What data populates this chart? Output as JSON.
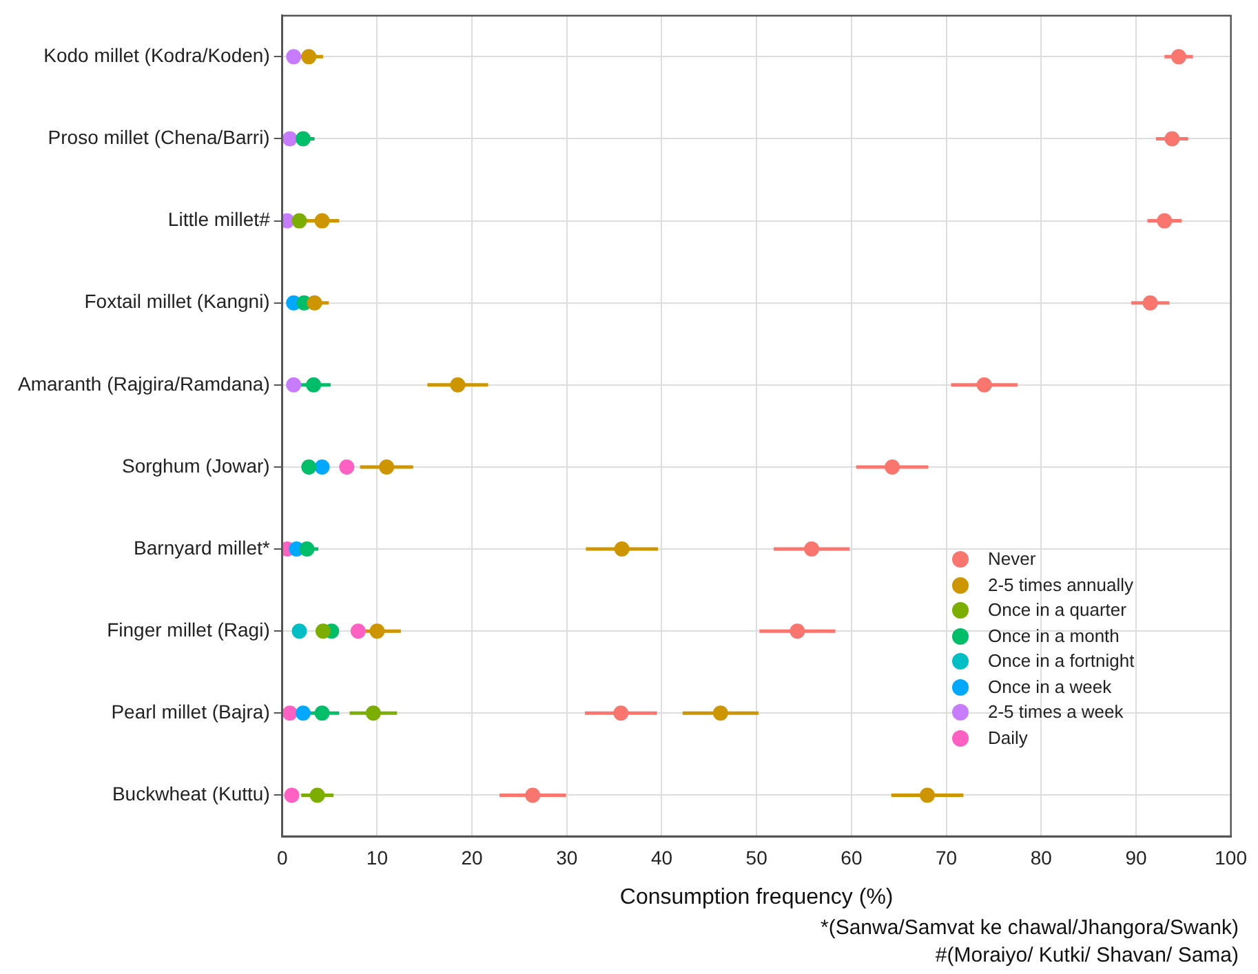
{
  "chart_data": {
    "type": "scatter",
    "orientation": "horizontal",
    "xlabel": "Consumption frequency (%)",
    "categories": [
      "Kodo millet (Kodra/Koden)",
      "Proso millet (Chena/Barri)",
      "Little millet#",
      "Foxtail millet (Kangni)",
      "Amaranth (Rajgira/Ramdana)",
      "Sorghum (Jowar)",
      "Barnyard millet*",
      "Finger millet (Ragi)",
      "Pearl millet (Bajra)",
      "Buckwheat (Kuttu)"
    ],
    "xlim": [
      0,
      100
    ],
    "xticks": [
      0,
      10,
      20,
      30,
      40,
      50,
      60,
      70,
      80,
      90,
      100
    ],
    "grid": true,
    "legend": "bottom right",
    "marker": "circle",
    "series": [
      {
        "name": "Never",
        "color": "#f8766d",
        "values": [
          94.5,
          93.8,
          93,
          91.5,
          74,
          64.3,
          55.8,
          54.3,
          35.7,
          26.4
        ],
        "errors": [
          1.5,
          1.7,
          1.8,
          2,
          3.5,
          3.8,
          4,
          4,
          3.8,
          3.5
        ]
      },
      {
        "name": "2-5 times annually",
        "color": "#cd9600",
        "values": [
          2.8,
          null,
          4.2,
          3.4,
          18.5,
          11,
          35.8,
          10,
          46.2,
          68
        ],
        "errors": [
          1.5,
          null,
          1.8,
          1.5,
          3.2,
          2.8,
          3.8,
          2.5,
          4,
          3.8
        ]
      },
      {
        "name": "Once in a quarter",
        "color": "#7cae00",
        "values": [
          null,
          null,
          1.8,
          null,
          null,
          null,
          null,
          4.3,
          9.6,
          3.7
        ],
        "errors": [
          null,
          null,
          null,
          null,
          null,
          null,
          null,
          null,
          2.5,
          1.7
        ]
      },
      {
        "name": "Once in a month",
        "color": "#00be67",
        "values": [
          null,
          2.2,
          null,
          2.3,
          3.3,
          2.8,
          2.6,
          5.2,
          4.2,
          null
        ],
        "errors": [
          null,
          1.2,
          null,
          null,
          1.8,
          null,
          1.2,
          null,
          1.8,
          null
        ]
      },
      {
        "name": "Once in a fortnight",
        "color": "#00bfc4",
        "values": [
          null,
          null,
          null,
          null,
          null,
          null,
          null,
          1.8,
          null,
          null
        ],
        "errors": [
          null,
          null,
          null,
          null,
          null,
          null,
          null,
          null,
          null,
          null
        ]
      },
      {
        "name": "Once in a week",
        "color": "#00a9ff",
        "values": [
          null,
          null,
          null,
          1.2,
          null,
          4.2,
          1.5,
          null,
          2.2,
          null
        ],
        "errors": [
          null,
          null,
          null,
          null,
          null,
          null,
          null,
          null,
          null,
          null
        ]
      },
      {
        "name": "2-5 times a week",
        "color": "#c77cff",
        "values": [
          1.2,
          0.8,
          0.5,
          null,
          1.2,
          null,
          null,
          null,
          null,
          null
        ],
        "errors": [
          null,
          null,
          null,
          null,
          null,
          null,
          null,
          null,
          null,
          null
        ]
      },
      {
        "name": "Daily",
        "color": "#ff61c3",
        "values": [
          null,
          null,
          null,
          null,
          null,
          6.8,
          0.5,
          8,
          0.8,
          1
        ],
        "errors": [
          null,
          null,
          null,
          null,
          null,
          null,
          null,
          null,
          null,
          null
        ]
      }
    ],
    "annotations": [
      "*(Sanwa/Samvat ke chawal/Jhangora/Swank)",
      "#(Moraiyo/ Kutki/ Shavan/ Sama)"
    ]
  }
}
